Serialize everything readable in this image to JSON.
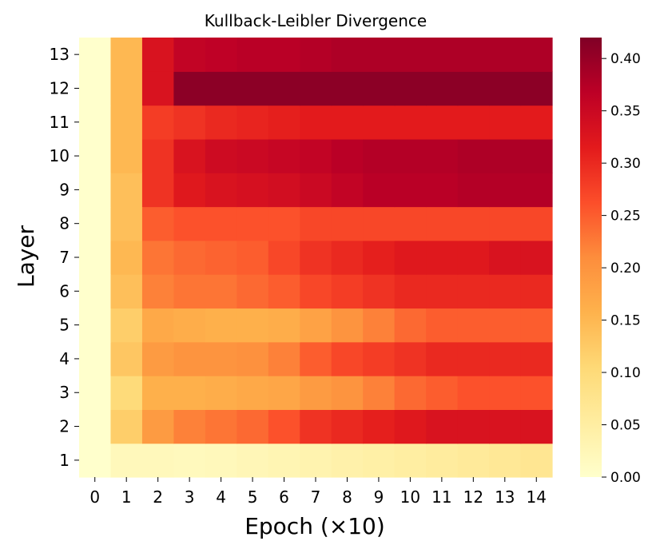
{
  "chart_data": {
    "type": "heatmap",
    "title": "Kullback-Leibler Divergence",
    "xlabel": "Epoch (×10)",
    "ylabel": "Layer",
    "x_categories": [
      "0",
      "1",
      "2",
      "3",
      "4",
      "5",
      "6",
      "7",
      "8",
      "9",
      "10",
      "11",
      "12",
      "13",
      "14"
    ],
    "y_categories": [
      "1",
      "2",
      "3",
      "4",
      "5",
      "6",
      "7",
      "8",
      "9",
      "10",
      "11",
      "12",
      "13"
    ],
    "colormap": "YlOrRd",
    "color_range": [
      0.0,
      0.42
    ],
    "colorbar_ticks": [
      "0.00",
      "0.05",
      "0.10",
      "0.15",
      "0.20",
      "0.25",
      "0.30",
      "0.35",
      "0.40"
    ],
    "rows": [
      {
        "layer": "1",
        "values": [
          0.0,
          0.02,
          0.02,
          0.018,
          0.02,
          0.025,
          0.03,
          0.035,
          0.04,
          0.045,
          0.05,
          0.055,
          0.06,
          0.065,
          0.07
        ]
      },
      {
        "layer": "2",
        "values": [
          0.0,
          0.12,
          0.19,
          0.22,
          0.23,
          0.24,
          0.26,
          0.29,
          0.3,
          0.31,
          0.32,
          0.33,
          0.33,
          0.33,
          0.33
        ]
      },
      {
        "layer": "3",
        "values": [
          0.0,
          0.1,
          0.16,
          0.16,
          0.165,
          0.17,
          0.175,
          0.19,
          0.2,
          0.22,
          0.24,
          0.25,
          0.26,
          0.26,
          0.26
        ]
      },
      {
        "layer": "4",
        "values": [
          0.0,
          0.13,
          0.19,
          0.2,
          0.2,
          0.205,
          0.22,
          0.25,
          0.27,
          0.28,
          0.29,
          0.3,
          0.3,
          0.3,
          0.3
        ]
      },
      {
        "layer": "5",
        "values": [
          0.0,
          0.12,
          0.17,
          0.165,
          0.16,
          0.16,
          0.165,
          0.18,
          0.2,
          0.22,
          0.24,
          0.25,
          0.25,
          0.25,
          0.25
        ]
      },
      {
        "layer": "6",
        "values": [
          0.0,
          0.14,
          0.22,
          0.23,
          0.23,
          0.24,
          0.25,
          0.27,
          0.28,
          0.29,
          0.3,
          0.3,
          0.3,
          0.3,
          0.3
        ]
      },
      {
        "layer": "7",
        "values": [
          0.0,
          0.15,
          0.23,
          0.24,
          0.245,
          0.25,
          0.27,
          0.29,
          0.3,
          0.31,
          0.32,
          0.32,
          0.32,
          0.33,
          0.33
        ]
      },
      {
        "layer": "8",
        "values": [
          0.0,
          0.14,
          0.25,
          0.26,
          0.26,
          0.26,
          0.26,
          0.27,
          0.27,
          0.27,
          0.27,
          0.27,
          0.27,
          0.27,
          0.27
        ]
      },
      {
        "layer": "9",
        "values": [
          0.0,
          0.14,
          0.29,
          0.32,
          0.33,
          0.335,
          0.34,
          0.35,
          0.36,
          0.37,
          0.37,
          0.37,
          0.375,
          0.375,
          0.375
        ]
      },
      {
        "layer": "10",
        "values": [
          0.0,
          0.15,
          0.29,
          0.33,
          0.345,
          0.35,
          0.355,
          0.36,
          0.37,
          0.375,
          0.375,
          0.375,
          0.38,
          0.38,
          0.38
        ]
      },
      {
        "layer": "11",
        "values": [
          0.0,
          0.15,
          0.28,
          0.29,
          0.3,
          0.305,
          0.31,
          0.315,
          0.315,
          0.315,
          0.315,
          0.315,
          0.315,
          0.315,
          0.315
        ]
      },
      {
        "layer": "12",
        "values": [
          0.0,
          0.15,
          0.33,
          0.41,
          0.41,
          0.41,
          0.41,
          0.41,
          0.41,
          0.41,
          0.41,
          0.41,
          0.41,
          0.41,
          0.41
        ]
      },
      {
        "layer": "13",
        "values": [
          0.0,
          0.15,
          0.33,
          0.36,
          0.365,
          0.37,
          0.37,
          0.375,
          0.38,
          0.38,
          0.38,
          0.38,
          0.38,
          0.38,
          0.38
        ]
      }
    ]
  }
}
